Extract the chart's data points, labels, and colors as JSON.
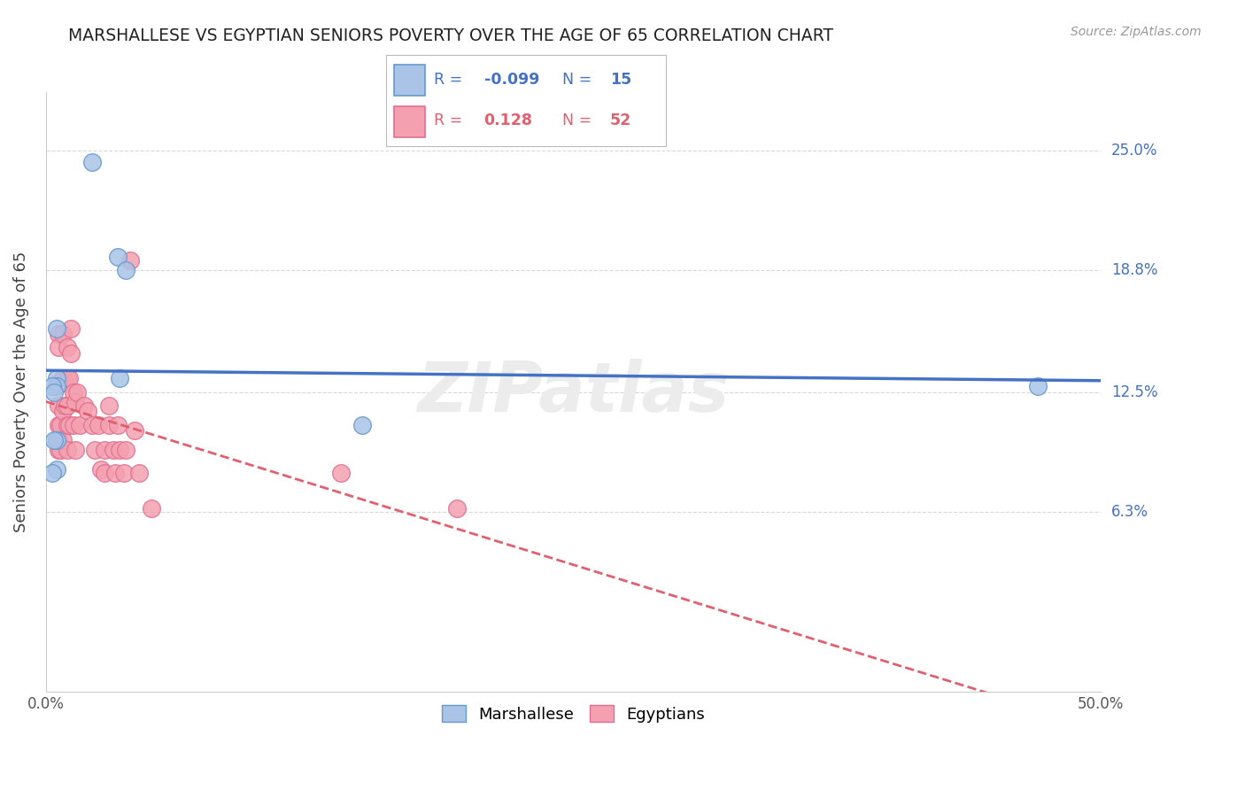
{
  "title": "MARSHALLESE VS EGYPTIAN SENIORS POVERTY OVER THE AGE OF 65 CORRELATION CHART",
  "source": "Source: ZipAtlas.com",
  "ylabel": "Seniors Poverty Over the Age of 65",
  "xlim": [
    0.0,
    0.5
  ],
  "ylim": [
    -0.03,
    0.28
  ],
  "yticks": [
    0.063,
    0.125,
    0.188,
    0.25
  ],
  "ytick_labels": [
    "6.3%",
    "12.5%",
    "18.8%",
    "25.0%"
  ],
  "xticks": [
    0.0,
    0.1,
    0.2,
    0.3,
    0.4,
    0.5
  ],
  "xtick_labels": [
    "0.0%",
    "",
    "",
    "",
    "",
    "50.0%"
  ],
  "background_color": "#ffffff",
  "grid_color": "#d8d8d8",
  "marshallese_color": "#aac4e8",
  "egyptian_color": "#f4a0b0",
  "marshallese_edge_color": "#6699cc",
  "egyptian_edge_color": "#e07090",
  "marshallese_line_color": "#4472c4",
  "egyptian_line_color": "#e06070",
  "legend_R1": "-0.099",
  "legend_N1": "15",
  "legend_R2": "0.128",
  "legend_N2": "52",
  "marshallese_x": [
    0.022,
    0.034,
    0.038,
    0.005,
    0.005,
    0.005,
    0.003,
    0.004,
    0.035,
    0.15,
    0.47,
    0.005,
    0.004,
    0.005,
    0.003
  ],
  "marshallese_y": [
    0.244,
    0.195,
    0.188,
    0.158,
    0.132,
    0.128,
    0.128,
    0.125,
    0.132,
    0.108,
    0.128,
    0.1,
    0.1,
    0.085,
    0.083
  ],
  "egyptian_x": [
    0.006,
    0.006,
    0.006,
    0.006,
    0.006,
    0.006,
    0.006,
    0.007,
    0.007,
    0.008,
    0.008,
    0.008,
    0.008,
    0.009,
    0.009,
    0.01,
    0.01,
    0.01,
    0.01,
    0.01,
    0.011,
    0.011,
    0.012,
    0.012,
    0.013,
    0.013,
    0.014,
    0.014,
    0.015,
    0.016,
    0.018,
    0.02,
    0.022,
    0.023,
    0.025,
    0.026,
    0.028,
    0.028,
    0.03,
    0.03,
    0.032,
    0.033,
    0.034,
    0.035,
    0.037,
    0.038,
    0.04,
    0.042,
    0.044,
    0.05,
    0.14,
    0.195
  ],
  "egyptian_y": [
    0.155,
    0.148,
    0.13,
    0.118,
    0.108,
    0.1,
    0.095,
    0.108,
    0.095,
    0.155,
    0.132,
    0.115,
    0.1,
    0.13,
    0.118,
    0.148,
    0.132,
    0.118,
    0.108,
    0.095,
    0.132,
    0.108,
    0.158,
    0.145,
    0.125,
    0.108,
    0.12,
    0.095,
    0.125,
    0.108,
    0.118,
    0.115,
    0.108,
    0.095,
    0.108,
    0.085,
    0.095,
    0.083,
    0.118,
    0.108,
    0.095,
    0.083,
    0.108,
    0.095,
    0.083,
    0.095,
    0.193,
    0.105,
    0.083,
    0.065,
    0.083,
    0.065
  ]
}
